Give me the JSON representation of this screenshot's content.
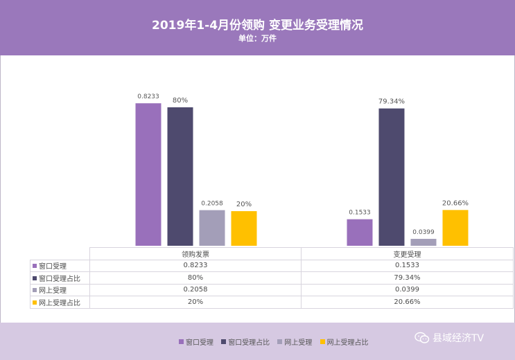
{
  "header": {
    "title": "2019年1-4月份领购 变更业务受理情况",
    "subtitle": "单位：万件"
  },
  "chart_data": {
    "type": "bar",
    "categories": [
      "领购发票",
      "变更受理"
    ],
    "series": [
      {
        "name": "窗口受理",
        "values": [
          0.8233,
          0.1533
        ],
        "labels": [
          "0.8233",
          "0.1533"
        ],
        "color": "#9970bb"
      },
      {
        "name": "窗口受理占比",
        "values": [
          80,
          79.34
        ],
        "labels": [
          "80%",
          "79.34%"
        ],
        "color": "#4e4a6e"
      },
      {
        "name": "网上受理",
        "values": [
          0.2058,
          0.0399
        ],
        "labels": [
          "0.2058",
          "0.0399"
        ],
        "color": "#a39eb8"
      },
      {
        "name": "网上受理占比",
        "values": [
          20,
          20.66
        ],
        "labels": [
          "20%",
          "20.66%"
        ],
        "color": "#ffc000"
      }
    ],
    "scale_note": "counts in 万件 drawn against a 0–1 scale, percentages against 0–100%",
    "grid": false,
    "legend_position": "bottom"
  },
  "table": {
    "columns": [
      "领购发票",
      "变更受理"
    ],
    "rows": [
      {
        "label": "窗口受理",
        "values": [
          "0.8233",
          "0.1533"
        ]
      },
      {
        "label": "窗口受理占比",
        "values": [
          "80%",
          "79.34%"
        ]
      },
      {
        "label": "网上受理",
        "values": [
          "0.2058",
          "0.0399"
        ]
      },
      {
        "label": "网上受理占比",
        "values": [
          "20%",
          "20.66%"
        ]
      }
    ]
  },
  "legend": {
    "items": [
      "窗口受理",
      "窗口受理占比",
      "网上受理",
      "网上受理占比"
    ]
  },
  "watermark": {
    "text": "县域经济TV",
    "icon": "wechat-icon"
  }
}
